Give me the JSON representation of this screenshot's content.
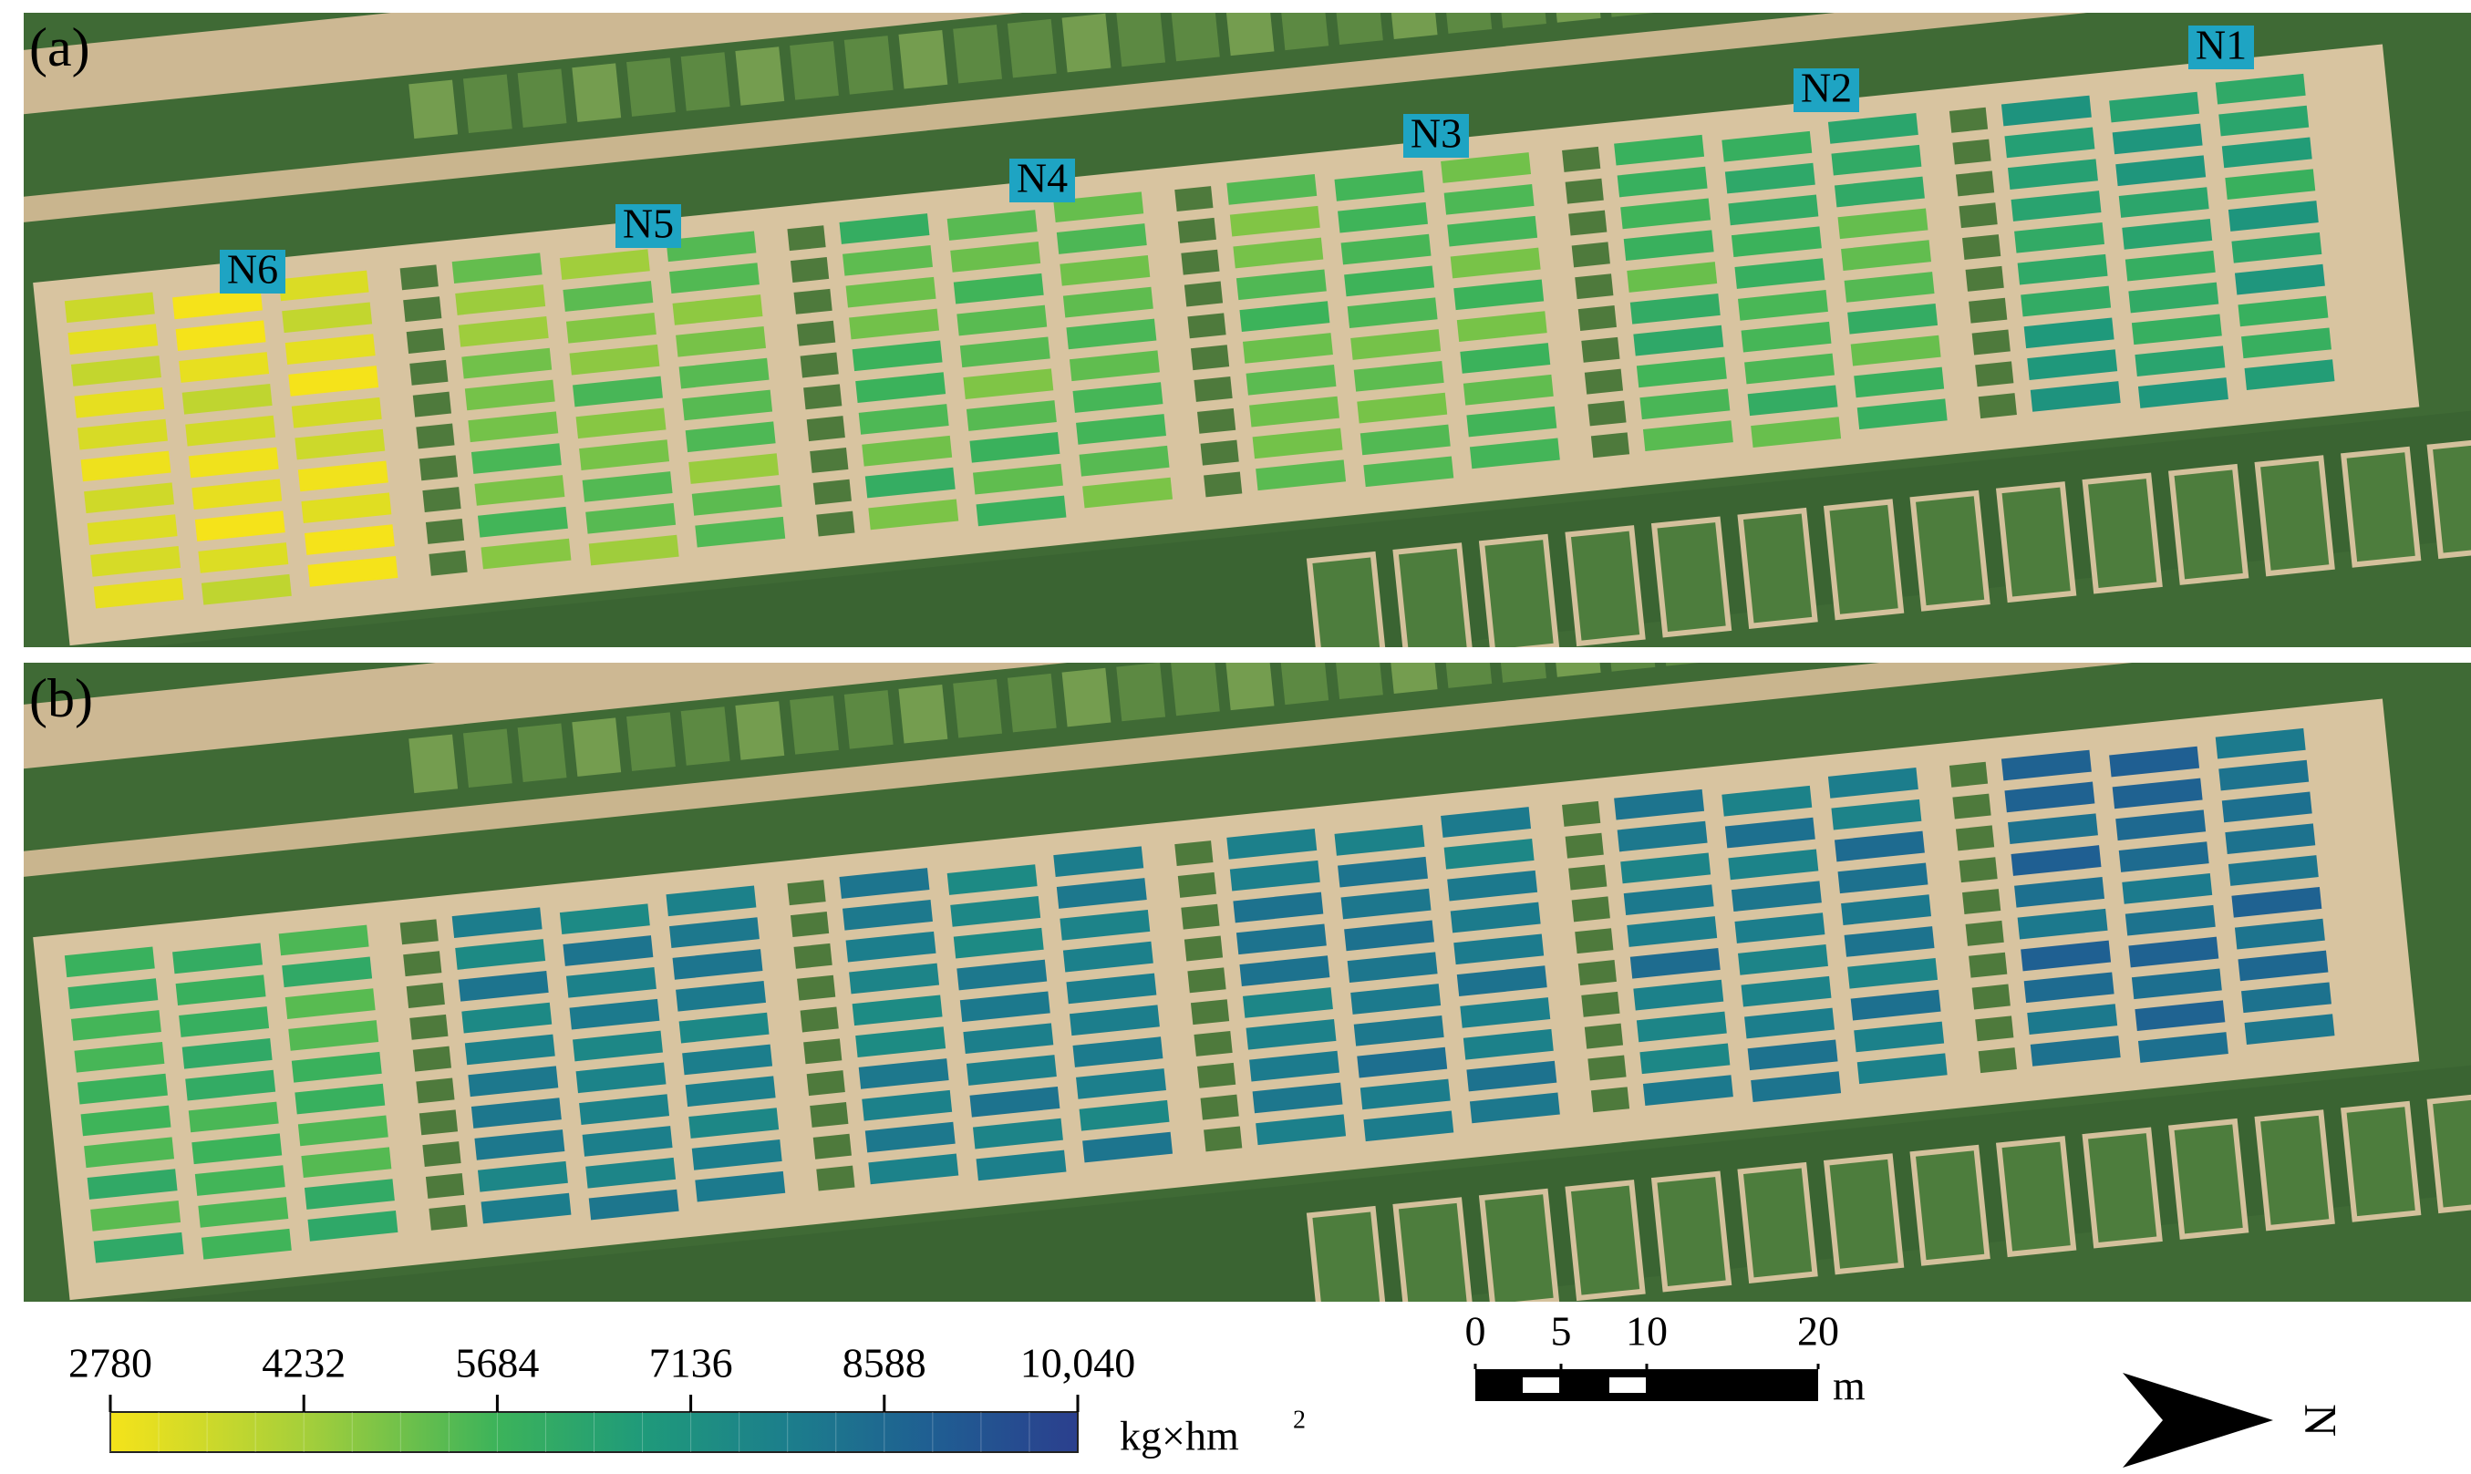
{
  "panels": [
    {
      "label": "(a)"
    },
    {
      "label": "(b)"
    }
  ],
  "groups": [
    "N1",
    "N2",
    "N3",
    "N4",
    "N5",
    "N6"
  ],
  "colorbar": {
    "range": [
      2780,
      10040
    ],
    "ticks": [
      2780,
      4232,
      5684,
      7136,
      8588,
      {
        "value": 10040,
        "label": "10,040"
      }
    ],
    "unit": "kg×hm",
    "unit_exponent": "2"
  },
  "scale_bar": {
    "ticks": [
      0,
      5,
      10,
      20
    ],
    "unit": "m"
  },
  "north_arrow": {
    "label": "N"
  }
}
